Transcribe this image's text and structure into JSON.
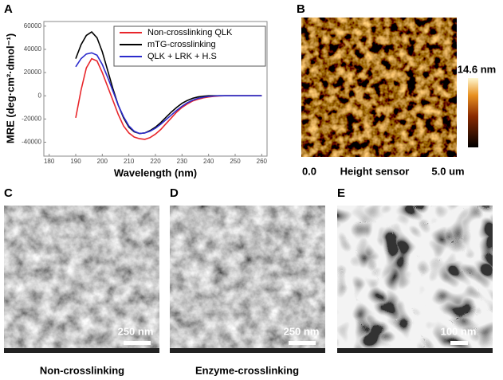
{
  "chart_data": {
    "type": "line",
    "x_label": "Wavelength (nm)",
    "y_label": "MRE (deg·cm²·dmol⁻¹)",
    "x": [
      190,
      192,
      194,
      196,
      198,
      200,
      202,
      204,
      206,
      208,
      210,
      212,
      214,
      216,
      218,
      220,
      222,
      224,
      226,
      228,
      230,
      232,
      234,
      236,
      238,
      240,
      242,
      244,
      246,
      248,
      250,
      252,
      254,
      256,
      258,
      260
    ],
    "series": [
      {
        "name": "Non-crosslinking QLK",
        "color": "#e8262b",
        "values": [
          -19000,
          5000,
          24000,
          32000,
          30000,
          20000,
          8000,
          -4000,
          -16000,
          -26000,
          -32000,
          -35500,
          -37000,
          -37500,
          -36000,
          -33000,
          -29000,
          -24000,
          -19000,
          -14000,
          -10000,
          -7000,
          -4500,
          -3000,
          -1800,
          -1000,
          -500,
          -200,
          0,
          0,
          0,
          0,
          0,
          0,
          0,
          0
        ]
      },
      {
        "name": "mTG-crosslinking",
        "color": "#000000",
        "values": [
          32000,
          44000,
          52000,
          55000,
          50000,
          38000,
          22000,
          6000,
          -8000,
          -19000,
          -27000,
          -31000,
          -32500,
          -32000,
          -30000,
          -27000,
          -23000,
          -18500,
          -14000,
          -10000,
          -6500,
          -4000,
          -2200,
          -1000,
          -400,
          0,
          0,
          0,
          0,
          0,
          0,
          0,
          0,
          0,
          0,
          0
        ]
      },
      {
        "name": "QLK + LRK + H.S",
        "color": "#2b2bcc",
        "values": [
          25000,
          32000,
          36000,
          37000,
          35000,
          27000,
          16000,
          4000,
          -8000,
          -18000,
          -26000,
          -30500,
          -32500,
          -32000,
          -30500,
          -28000,
          -24500,
          -20500,
          -16500,
          -12500,
          -9000,
          -6000,
          -3800,
          -2200,
          -1200,
          -500,
          -200,
          0,
          0,
          0,
          0,
          0,
          0,
          0,
          0,
          0
        ]
      }
    ],
    "xlim": [
      178,
      262
    ],
    "xticks": [
      180,
      190,
      200,
      210,
      220,
      230,
      240,
      250,
      260
    ],
    "ylim": [
      -52000,
      64000
    ],
    "yticks": [
      -40000,
      -20000,
      0,
      20000,
      40000,
      60000
    ],
    "legend": "upper right"
  },
  "panel_labels": [
    "A",
    "B",
    "C",
    "D",
    "E"
  ],
  "afm": {
    "colorbar_label": "14.6 nm",
    "x_start": "0.0",
    "x_label": "Height sensor",
    "x_end": "5.0 um"
  },
  "tem": [
    {
      "scale": "250 nm",
      "caption": "Non-crosslinking"
    },
    {
      "scale": "250 nm",
      "caption": "Enzyme-crosslinking"
    },
    {
      "scale": "100 nm"
    }
  ]
}
